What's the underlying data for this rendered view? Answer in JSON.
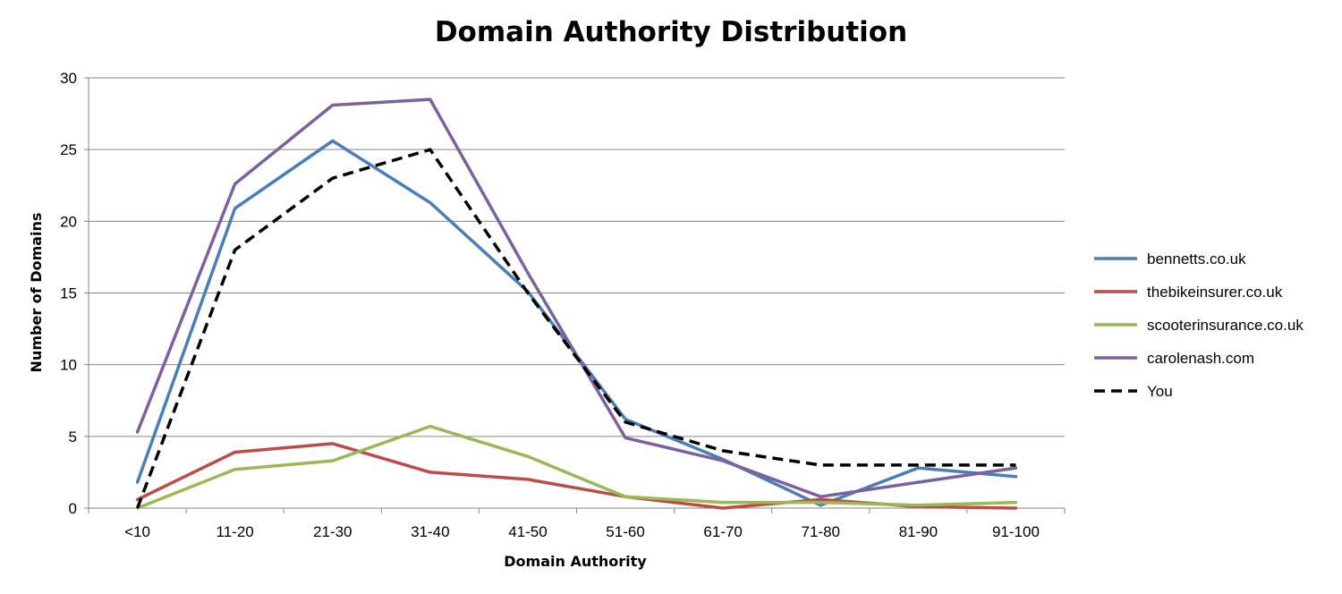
{
  "chart_data": {
    "type": "line",
    "title": "Domain Authority Distribution",
    "xlabel": "Domain Authority",
    "ylabel": "Number of Domains",
    "categories": [
      "<10",
      "11-20",
      "21-30",
      "31-40",
      "41-50",
      "51-60",
      "61-70",
      "71-80",
      "81-90",
      "91-100"
    ],
    "ylim": [
      0,
      30
    ],
    "yticks": [
      0,
      5,
      10,
      15,
      20,
      25,
      30
    ],
    "grid": true,
    "legend_position": "right",
    "series": [
      {
        "name": "bennetts.co.uk",
        "color": "#4a7ebb",
        "dashed": false,
        "values": [
          1.8,
          20.9,
          25.6,
          21.3,
          15.1,
          6.2,
          3.4,
          0.2,
          2.8,
          2.2
        ]
      },
      {
        "name": "thebikeinsurer.co.uk",
        "color": "#be4b48",
        "dashed": false,
        "values": [
          0.6,
          3.9,
          4.5,
          2.5,
          2.0,
          0.8,
          0.0,
          0.6,
          0.1,
          0.0
        ]
      },
      {
        "name": "scooterinsurance.co.uk",
        "color": "#98b954",
        "dashed": false,
        "values": [
          0.0,
          2.7,
          3.3,
          5.7,
          3.6,
          0.8,
          0.4,
          0.4,
          0.2,
          0.4
        ]
      },
      {
        "name": "carolenash.com",
        "color": "#7d60a0",
        "dashed": false,
        "values": [
          5.3,
          22.6,
          28.1,
          28.5,
          16.4,
          4.9,
          3.3,
          0.8,
          1.8,
          2.8
        ]
      },
      {
        "name": "You",
        "color": "#000000",
        "dashed": true,
        "values": [
          0,
          18,
          23,
          25,
          15,
          6,
          4,
          3,
          3,
          3
        ]
      }
    ]
  }
}
